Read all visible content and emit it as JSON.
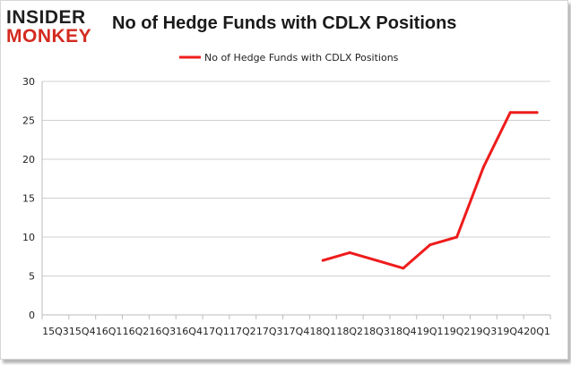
{
  "logo": {
    "line1": "INSIDER",
    "line2": "MONKEY"
  },
  "colors": {
    "series": "#ee1c1c",
    "grid": "#d0d0d0",
    "axis": "#bbbbbb"
  },
  "chart_data": {
    "type": "line",
    "title": "No of Hedge Funds with CDLX Positions",
    "categories": [
      "15Q3",
      "15Q4",
      "16Q1",
      "16Q2",
      "16Q3",
      "16Q4",
      "17Q1",
      "17Q2",
      "17Q3",
      "17Q4",
      "18Q1",
      "18Q2",
      "18Q3",
      "18Q4",
      "19Q1",
      "19Q2",
      "19Q3",
      "19Q4",
      "20Q1"
    ],
    "series": [
      {
        "name": "No of Hedge Funds with CDLX Positions",
        "values": [
          null,
          null,
          null,
          null,
          null,
          null,
          null,
          null,
          null,
          null,
          7,
          8,
          7,
          6,
          9,
          10,
          19,
          26,
          26
        ]
      }
    ],
    "ylim": [
      0,
      30
    ],
    "yticks": [
      0,
      5,
      10,
      15,
      20,
      25,
      30
    ],
    "grid": true,
    "legend": "top-center",
    "xlabel": "",
    "ylabel": ""
  }
}
